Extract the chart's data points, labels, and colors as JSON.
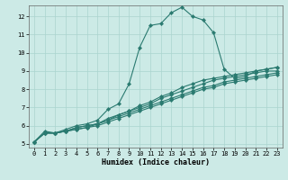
{
  "xlabel": "Humidex (Indice chaleur)",
  "xlim": [
    -0.5,
    23.5
  ],
  "ylim": [
    4.8,
    12.6
  ],
  "xticks": [
    0,
    1,
    2,
    3,
    4,
    5,
    6,
    7,
    8,
    9,
    10,
    11,
    12,
    13,
    14,
    15,
    16,
    17,
    18,
    19,
    20,
    21,
    22,
    23
  ],
  "yticks": [
    5,
    6,
    7,
    8,
    9,
    10,
    11,
    12
  ],
  "bg_color": "#cceae6",
  "grid_color": "#aad4ce",
  "line_color": "#2a7a70",
  "lines": [
    [
      5.1,
      5.7,
      5.6,
      5.8,
      6.0,
      6.1,
      6.3,
      6.9,
      7.2,
      8.3,
      10.3,
      11.5,
      11.6,
      12.2,
      12.5,
      12.0,
      11.8,
      11.1,
      9.1,
      8.6,
      8.7,
      9.0,
      9.1,
      9.2
    ],
    [
      5.1,
      5.6,
      5.6,
      5.7,
      5.9,
      6.0,
      6.1,
      6.4,
      6.6,
      6.8,
      7.1,
      7.3,
      7.6,
      7.8,
      8.1,
      8.3,
      8.5,
      8.6,
      8.7,
      8.8,
      8.9,
      9.0,
      9.1,
      9.2
    ],
    [
      5.1,
      5.6,
      5.6,
      5.7,
      5.9,
      6.0,
      6.1,
      6.3,
      6.6,
      6.8,
      7.0,
      7.2,
      7.5,
      7.7,
      7.9,
      8.1,
      8.3,
      8.5,
      8.6,
      8.7,
      8.8,
      8.9,
      9.0,
      9.0
    ],
    [
      5.1,
      5.6,
      5.6,
      5.7,
      5.8,
      5.9,
      6.1,
      6.3,
      6.5,
      6.7,
      6.9,
      7.1,
      7.3,
      7.5,
      7.7,
      7.9,
      8.1,
      8.2,
      8.4,
      8.5,
      8.6,
      8.7,
      8.8,
      8.9
    ],
    [
      5.1,
      5.6,
      5.6,
      5.7,
      5.8,
      5.9,
      6.0,
      6.2,
      6.4,
      6.6,
      6.8,
      7.0,
      7.2,
      7.4,
      7.6,
      7.8,
      8.0,
      8.1,
      8.3,
      8.4,
      8.5,
      8.6,
      8.7,
      8.8
    ]
  ],
  "marker": "D",
  "marker_size": 2.2,
  "line_width": 0.8,
  "fig_bg": "#cceae6",
  "spine_color": "#666666",
  "tick_fontsize": 5.0,
  "xlabel_fontsize": 6.0
}
